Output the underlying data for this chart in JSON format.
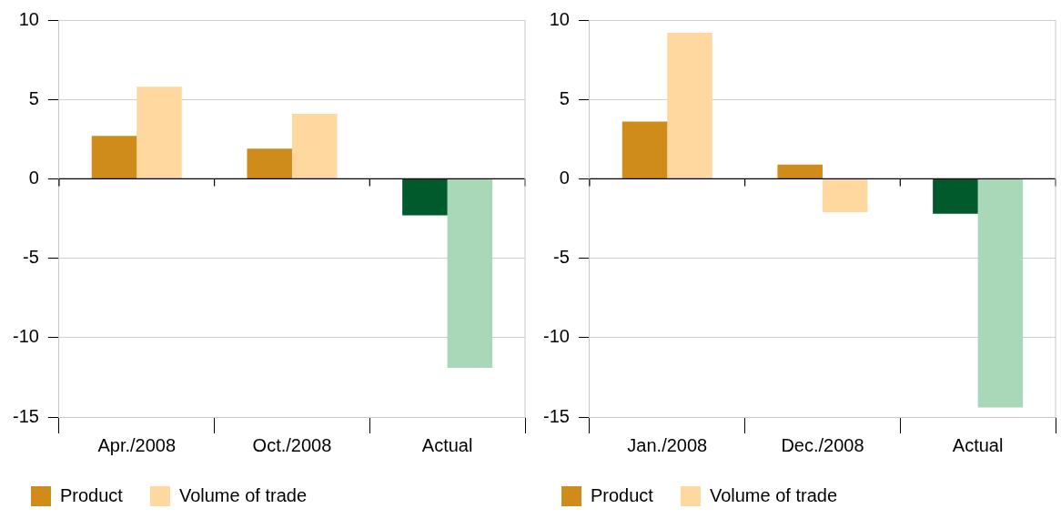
{
  "chart_data": [
    {
      "type": "bar",
      "categories": [
        "Apr./2008",
        "Oct./2008",
        "Actual"
      ],
      "series": [
        {
          "name": "Product",
          "color": "#d08c1a",
          "colors": [
            "#d08c1a",
            "#d08c1a",
            "#005a2b"
          ],
          "values": [
            2.7,
            1.9,
            -2.3
          ]
        },
        {
          "name": "Volume of trade",
          "color": "#fed89e",
          "colors": [
            "#fed89e",
            "#fed89e",
            "#a9d8b8"
          ],
          "values": [
            5.8,
            4.1,
            -11.9
          ]
        }
      ],
      "ylim": [
        -15,
        10
      ],
      "yticks": [
        -15,
        -10,
        -5,
        0,
        5,
        10
      ],
      "grid": "y",
      "legend": "bottom"
    },
    {
      "type": "bar",
      "categories": [
        "Jan./2008",
        "Dec./2008",
        "Actual"
      ],
      "series": [
        {
          "name": "Product",
          "color": "#d08c1a",
          "colors": [
            "#d08c1a",
            "#d08c1a",
            "#005a2b"
          ],
          "values": [
            3.6,
            0.9,
            -2.2
          ]
        },
        {
          "name": "Volume of trade",
          "color": "#fed89e",
          "colors": [
            "#fed89e",
            "#fed89e",
            "#a9d8b8"
          ],
          "values": [
            9.2,
            -2.1,
            -14.4
          ]
        }
      ],
      "ylim": [
        -15,
        10
      ],
      "yticks": [
        -15,
        -10,
        -5,
        0,
        5,
        10
      ],
      "grid": "y",
      "legend": "bottom"
    }
  ]
}
